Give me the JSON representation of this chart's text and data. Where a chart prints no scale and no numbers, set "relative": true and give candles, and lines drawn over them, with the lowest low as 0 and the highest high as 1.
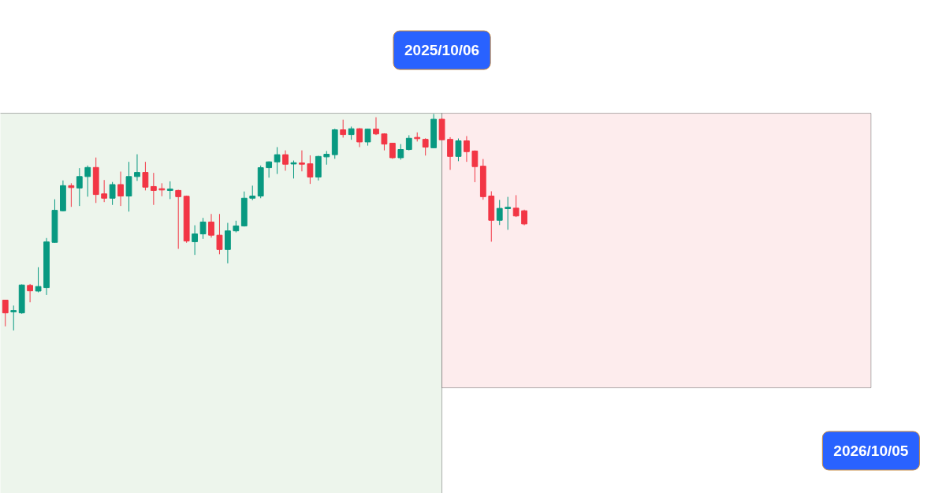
{
  "chart_data": {
    "type": "candlestick",
    "relative": true,
    "categories": [
      null,
      null,
      null,
      null,
      null,
      null,
      null,
      null,
      null,
      null,
      null,
      null,
      null,
      null,
      null,
      null,
      null,
      null,
      null,
      null,
      null,
      null,
      null,
      null,
      null,
      null,
      null,
      null,
      null,
      null,
      null,
      null,
      null,
      null,
      null,
      null,
      null,
      null,
      null,
      null,
      null,
      null,
      null,
      null,
      null,
      null,
      null,
      null,
      null,
      null,
      null,
      null,
      null,
      null,
      null,
      null,
      null,
      null,
      null,
      null,
      null,
      null,
      null,
      null
    ],
    "ohlc": [
      [
        0.14,
        0.14,
        0.019,
        0.081
      ],
      [
        0.086,
        0.115,
        0,
        0.087
      ],
      [
        0.081,
        0.213,
        0.077,
        0.21
      ],
      [
        0.208,
        0.215,
        0.13,
        0.183
      ],
      [
        0.182,
        0.292,
        0.176,
        0.203
      ],
      [
        0.198,
        0.427,
        0.164,
        0.409
      ],
      [
        0.407,
        0.606,
        0.405,
        0.555
      ],
      [
        0.553,
        0.693,
        0.55,
        0.669
      ],
      [
        0.669,
        0.68,
        0.571,
        0.66
      ],
      [
        0.658,
        0.75,
        0.575,
        0.711
      ],
      [
        0.711,
        0.762,
        0.618,
        0.753
      ],
      [
        0.753,
        0.799,
        0.589,
        0.628
      ],
      [
        0.631,
        0.695,
        0.593,
        0.611
      ],
      [
        0.611,
        0.686,
        0.58,
        0.674
      ],
      [
        0.674,
        0.734,
        0.575,
        0.621
      ],
      [
        0.621,
        0.779,
        0.549,
        0.711
      ],
      [
        0.711,
        0.814,
        0.691,
        0.73
      ],
      [
        0.73,
        0.779,
        0.647,
        0.662
      ],
      [
        0.665,
        0.728,
        0.58,
        0.647
      ],
      [
        0.654,
        0.68,
        0.62,
        0.649
      ],
      [
        0.647,
        0.689,
        0.607,
        0.65
      ],
      [
        0.647,
        0.65,
        0.377,
        0.618
      ],
      [
        0.62,
        0.623,
        0.405,
        0.413
      ],
      [
        0.41,
        0.486,
        0.349,
        0.446
      ],
      [
        0.446,
        0.52,
        0.423,
        0.501
      ],
      [
        0.501,
        0.538,
        0.429,
        0.44
      ],
      [
        0.44,
        0.538,
        0.352,
        0.374
      ],
      [
        0.374,
        0.497,
        0.31,
        0.46
      ],
      [
        0.46,
        0.507,
        0.453,
        0.483
      ],
      [
        0.483,
        0.642,
        0.48,
        0.611
      ],
      [
        0.611,
        0.669,
        0.602,
        0.621
      ],
      [
        0.621,
        0.762,
        0.611,
        0.752
      ],
      [
        0.752,
        0.781,
        0.706,
        0.779
      ],
      [
        0.779,
        0.847,
        0.723,
        0.812
      ],
      [
        0.812,
        0.832,
        0.738,
        0.768
      ],
      [
        0.769,
        0.785,
        0.702,
        0.773
      ],
      [
        0.773,
        0.832,
        0.735,
        0.768
      ],
      [
        0.77,
        0.809,
        0.677,
        0.709
      ],
      [
        0.709,
        0.807,
        0.693,
        0.804
      ],
      [
        0.802,
        0.829,
        0.766,
        0.814
      ],
      [
        0.812,
        0.932,
        0.793,
        0.927
      ],
      [
        0.927,
        0.974,
        0.891,
        0.905
      ],
      [
        0.905,
        0.942,
        0.881,
        0.932
      ],
      [
        0.932,
        0.935,
        0.847,
        0.871
      ],
      [
        0.871,
        0.932,
        0.854,
        0.93
      ],
      [
        0.93,
        0.985,
        0.903,
        0.908
      ],
      [
        0.908,
        0.911,
        0.832,
        0.861
      ],
      [
        0.865,
        0.866,
        0.793,
        0.798
      ],
      [
        0.798,
        0.861,
        0.789,
        0.836
      ],
      [
        0.836,
        0.902,
        0.832,
        0.888
      ],
      [
        0.891,
        0.915,
        0.873,
        0.886
      ],
      [
        0.883,
        0.888,
        0.808,
        0.847
      ],
      [
        0.844,
        1.0,
        0.842,
        0.976
      ],
      [
        0.976,
        0.981,
        0.879,
        0.881
      ],
      [
        0.883,
        0.893,
        0.742,
        0.804
      ],
      [
        0.804,
        0.887,
        0.782,
        0.876
      ],
      [
        0.876,
        0.898,
        0.779,
        0.826
      ],
      [
        0.829,
        0.832,
        0.685,
        0.757
      ],
      [
        0.759,
        0.792,
        0.604,
        0.618
      ],
      [
        0.621,
        0.643,
        0.41,
        0.509
      ],
      [
        0.509,
        0.603,
        0.487,
        0.564
      ],
      [
        0.563,
        0.617,
        0.465,
        0.565
      ],
      [
        0.565,
        0.625,
        0.524,
        0.529
      ],
      [
        0.553,
        0.558,
        0.486,
        0.492
      ]
    ],
    "annotations": [
      "2025/10/06",
      "2026/10/05"
    ]
  }
}
